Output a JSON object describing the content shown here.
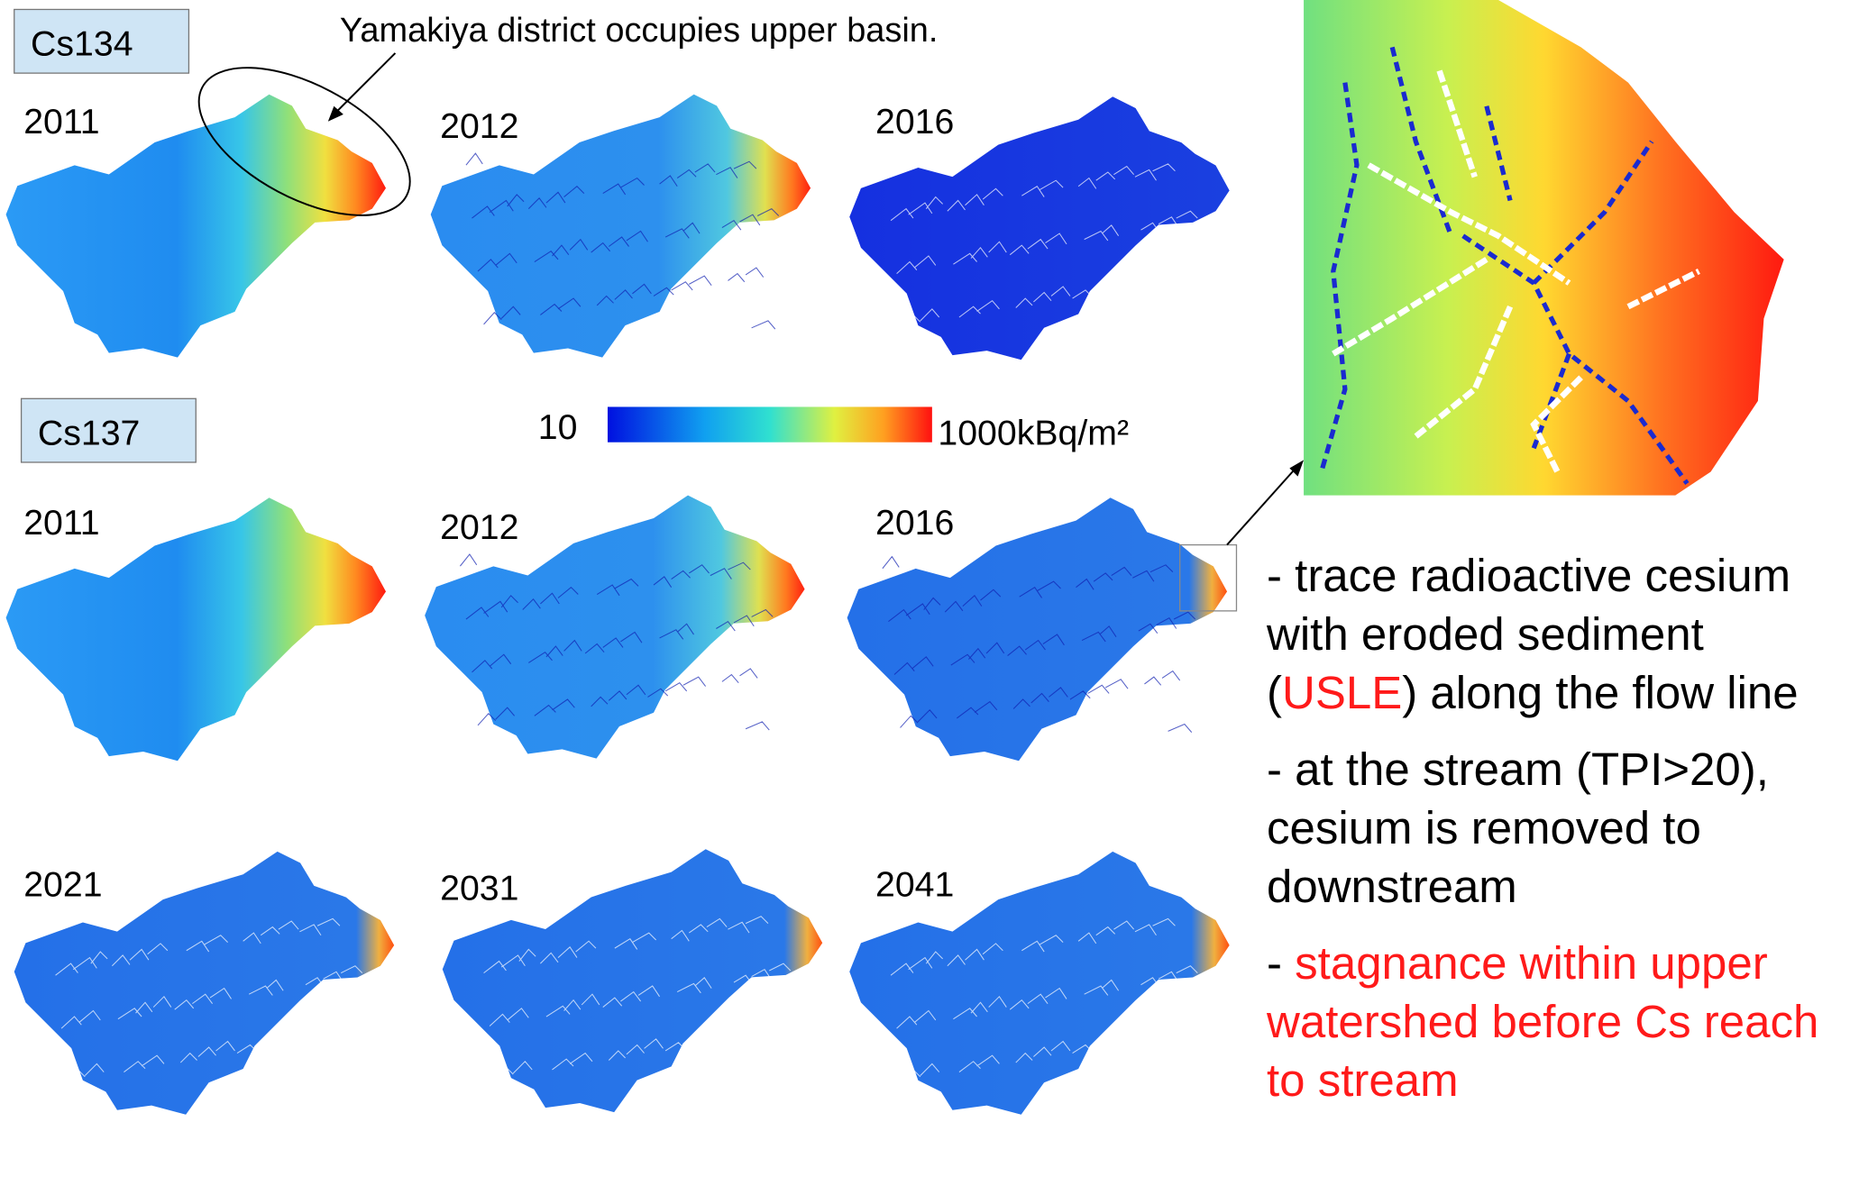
{
  "labels": {
    "cs134": "Cs134",
    "cs137": "Cs137",
    "annotation": "Yamakiya district occupies upper basin."
  },
  "maps": [
    {
      "year": "2011"
    },
    {
      "year": "2012"
    },
    {
      "year": "2016"
    },
    {
      "year": "2011"
    },
    {
      "year": "2012"
    },
    {
      "year": "2016"
    },
    {
      "year": "2021"
    },
    {
      "year": "2031"
    },
    {
      "year": "2041"
    }
  ],
  "colorbar": {
    "min_label": "10",
    "max_label": "1000kBq/m²"
  },
  "bullets": [
    {
      "parts": [
        {
          "text": "- trace radioactive cesium with eroded sediment ("
        },
        {
          "text": "USLE",
          "color": "#ff1a1a"
        },
        {
          "text": ") along the flow line"
        }
      ]
    },
    {
      "parts": [
        {
          "text": "- at the stream (TPI>20), cesium is removed to downstream"
        }
      ]
    },
    {
      "parts": [
        {
          "text": "- "
        },
        {
          "text": "stagnance within upper watershed before Cs reach to stream",
          "color": "#ff1a1a"
        }
      ]
    }
  ]
}
